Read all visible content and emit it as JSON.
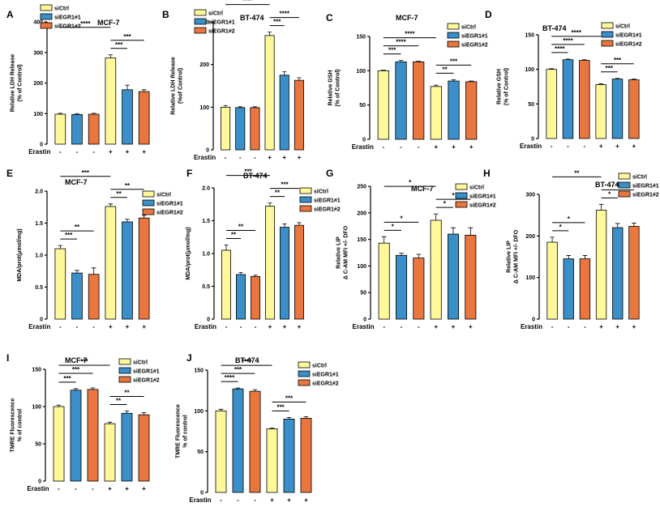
{
  "colors": {
    "siCtrl": "#FFF89B",
    "siEGR1#1": "#3A8FC8",
    "siEGR1#2": "#E8763E"
  },
  "condition_label": "Erastin",
  "chart_data": [
    {
      "type": "bar",
      "panel": "A",
      "title": "MCF-7",
      "ylabel": [
        "Relative LDH Release",
        "(% of Control)"
      ],
      "ylim": [
        0,
        400
      ],
      "yticks": [
        "0",
        "100",
        "200",
        "300",
        "400"
      ],
      "legend": [
        "siCtrl",
        "siEGR1#1",
        "siEGR1#2"
      ],
      "categories": [
        "-",
        "-",
        "-",
        "+",
        "+",
        "+"
      ],
      "values": [
        98,
        97,
        98,
        282,
        178,
        172
      ],
      "errors": [
        3,
        3,
        3,
        10,
        15,
        6
      ],
      "groups": [
        "siCtrl",
        "siEGR1#1",
        "siEGR1#2",
        "siCtrl",
        "siEGR1#1",
        "siEGR1#2"
      ],
      "significance": [
        {
          "from": 0,
          "to": 3,
          "label": "****"
        },
        {
          "from": 3,
          "to": 4,
          "label": "***"
        },
        {
          "from": 3,
          "to": 5,
          "label": "***"
        }
      ]
    },
    {
      "type": "bar",
      "panel": "B",
      "title": "BT-474",
      "ylabel": [
        "Relative LDH Release",
        "(%of Control)"
      ],
      "ylim": [
        0,
        300
      ],
      "yticks": [
        "0",
        "100",
        "200",
        "300"
      ],
      "legend": [
        "siCtrl",
        "siEGR1#1",
        "siEGR1#2"
      ],
      "categories": [
        "-",
        "-",
        "-",
        "+",
        "+",
        "+"
      ],
      "values": [
        100,
        99,
        99,
        268,
        175,
        163
      ],
      "errors": [
        4,
        2,
        2,
        8,
        8,
        6
      ],
      "groups": [
        "siCtrl",
        "siEGR1#1",
        "siEGR1#2",
        "siCtrl",
        "siEGR1#1",
        "siEGR1#2"
      ],
      "significance": [
        {
          "from": 0,
          "to": 3,
          "label": "****"
        },
        {
          "from": 3,
          "to": 4,
          "label": "***"
        },
        {
          "from": 3,
          "to": 5,
          "label": "****"
        }
      ]
    },
    {
      "type": "bar",
      "panel": "C",
      "title": "MCF-7",
      "ylabel": [
        "Relative GSH",
        "(% of Control)"
      ],
      "ylim": [
        0,
        150
      ],
      "yticks": [
        "0",
        "50",
        "100",
        "150"
      ],
      "legend": [
        "siCtrl",
        "siEGR1#1",
        "siEGR1#2"
      ],
      "categories": [
        "-",
        "-",
        "-",
        "+",
        "+",
        "+"
      ],
      "values": [
        100,
        113,
        113,
        77,
        85,
        84
      ],
      "errors": [
        1,
        2,
        1,
        2,
        2,
        1
      ],
      "groups": [
        "siCtrl",
        "siEGR1#1",
        "siEGR1#2",
        "siCtrl",
        "siEGR1#1",
        "siEGR1#2"
      ],
      "significance": [
        {
          "from": 0,
          "to": 1,
          "label": "***"
        },
        {
          "from": 0,
          "to": 2,
          "label": "****"
        },
        {
          "from": 0,
          "to": 3,
          "label": "****"
        },
        {
          "from": 3,
          "to": 4,
          "label": "**"
        },
        {
          "from": 3,
          "to": 5,
          "label": "***"
        }
      ]
    },
    {
      "type": "bar",
      "panel": "D",
      "title": "BT-474",
      "ylabel": [
        "Relative GSH",
        "(% of Control)"
      ],
      "ylim": [
        0,
        150
      ],
      "yticks": [
        "0",
        "50",
        "100",
        "150"
      ],
      "legend": [
        "siCtrl",
        "siEGR1#1",
        "siEGR1#2"
      ],
      "categories": [
        "-",
        "-",
        "-",
        "+",
        "+",
        "+"
      ],
      "values": [
        100,
        114,
        113,
        78,
        86,
        85
      ],
      "errors": [
        1,
        1,
        1,
        1,
        1,
        1
      ],
      "groups": [
        "siCtrl",
        "siEGR1#1",
        "siEGR1#2",
        "siCtrl",
        "siEGR1#1",
        "siEGR1#2"
      ],
      "significance": [
        {
          "from": 0,
          "to": 1,
          "label": "****"
        },
        {
          "from": 0,
          "to": 2,
          "label": "****"
        },
        {
          "from": 0,
          "to": 3,
          "label": "****"
        },
        {
          "from": 3,
          "to": 4,
          "label": "***"
        },
        {
          "from": 3,
          "to": 5,
          "label": "***"
        }
      ]
    },
    {
      "type": "bar",
      "panel": "E",
      "title": "MCF-7",
      "ylabel": [
        "MDA/prot(μmol/mg)"
      ],
      "ylim": [
        0,
        2.0
      ],
      "yticks": [
        "0",
        "0.5",
        "1.0",
        "1.5",
        "2.0"
      ],
      "legend": [
        "siCtrl",
        "siEGR1#1",
        "siEGR1#2"
      ],
      "categories": [
        "-",
        "-",
        "-",
        "+",
        "+",
        "+"
      ],
      "values": [
        1.1,
        0.72,
        0.7,
        1.76,
        1.52,
        1.58
      ],
      "errors": [
        0.05,
        0.04,
        0.1,
        0.04,
        0.04,
        0.04
      ],
      "groups": [
        "siCtrl",
        "siEGR1#1",
        "siEGR1#2",
        "siCtrl",
        "siEGR1#1",
        "siEGR1#2"
      ],
      "significance": [
        {
          "from": 0,
          "to": 1,
          "label": "***"
        },
        {
          "from": 0,
          "to": 2,
          "label": "**"
        },
        {
          "from": 0,
          "to": 3,
          "label": "***"
        },
        {
          "from": 3,
          "to": 4,
          "label": "**"
        },
        {
          "from": 3,
          "to": 5,
          "label": "**"
        }
      ]
    },
    {
      "type": "bar",
      "panel": "F",
      "title": "BT-474",
      "ylabel": [
        "MDA/prot(μmol/mg)"
      ],
      "ylim": [
        0,
        2.0
      ],
      "yticks": [
        "0",
        "0.5",
        "1.0",
        "1.5",
        "2.0"
      ],
      "legend": [
        "siCtrl",
        "siEGR1#1",
        "siEGR1#2"
      ],
      "categories": [
        "-",
        "-",
        "-",
        "+",
        "+",
        "+"
      ],
      "values": [
        1.05,
        0.68,
        0.65,
        1.72,
        1.4,
        1.43
      ],
      "errors": [
        0.08,
        0.03,
        0.02,
        0.05,
        0.05,
        0.04
      ],
      "groups": [
        "siCtrl",
        "siEGR1#1",
        "siEGR1#2",
        "siCtrl",
        "siEGR1#1",
        "siEGR1#2"
      ],
      "significance": [
        {
          "from": 0,
          "to": 1,
          "label": "**"
        },
        {
          "from": 0,
          "to": 2,
          "label": "**"
        },
        {
          "from": 0,
          "to": 3,
          "label": "***"
        },
        {
          "from": 3,
          "to": 4,
          "label": "**"
        },
        {
          "from": 3,
          "to": 5,
          "label": "***"
        }
      ]
    },
    {
      "type": "bar",
      "panel": "G",
      "title": "MCF-7",
      "ylabel": [
        "Relative LIP",
        "Δ C-AM MFI +/- DFO"
      ],
      "ylim": [
        0,
        250
      ],
      "yticks": [
        "0",
        "50",
        "100",
        "150",
        "200",
        "250"
      ],
      "legend": [
        "siCtrl",
        "siEGR1#1",
        "siEGR1#2"
      ],
      "categories": [
        "-",
        "-",
        "-",
        "+",
        "+",
        "+"
      ],
      "values": [
        143,
        120,
        115,
        186,
        160,
        158
      ],
      "errors": [
        12,
        4,
        7,
        12,
        12,
        14
      ],
      "groups": [
        "siCtrl",
        "siEGR1#1",
        "siEGR1#2",
        "siCtrl",
        "siEGR1#1",
        "siEGR1#2"
      ],
      "significance": [
        {
          "from": 0,
          "to": 1,
          "label": "*"
        },
        {
          "from": 0,
          "to": 2,
          "label": "*"
        },
        {
          "from": 0,
          "to": 3,
          "label": "*"
        },
        {
          "from": 3,
          "to": 4,
          "label": "*"
        },
        {
          "from": 3,
          "to": 5,
          "label": "*"
        }
      ]
    },
    {
      "type": "bar",
      "panel": "H",
      "title": "BT-474",
      "ylabel": [
        "Relative LIP",
        "Δ C-AM MFI +/- DFO"
      ],
      "ylim": [
        0,
        300
      ],
      "yticks": [
        "0",
        "100",
        "200",
        "300"
      ],
      "legend": [
        "siCtrl",
        "siEGR1#1",
        "siEGR1#2"
      ],
      "categories": [
        "-",
        "-",
        "-",
        "+",
        "+",
        "+"
      ],
      "values": [
        185,
        145,
        145,
        262,
        220,
        223
      ],
      "errors": [
        12,
        8,
        8,
        14,
        10,
        8
      ],
      "groups": [
        "siCtrl",
        "siEGR1#1",
        "siEGR1#2",
        "siCtrl",
        "siEGR1#1",
        "siEGR1#2"
      ],
      "significance": [
        {
          "from": 0,
          "to": 1,
          "label": "*"
        },
        {
          "from": 0,
          "to": 2,
          "label": "*"
        },
        {
          "from": 0,
          "to": 3,
          "label": "**"
        },
        {
          "from": 3,
          "to": 4,
          "label": "*"
        },
        {
          "from": 3,
          "to": 5,
          "label": "*"
        }
      ]
    },
    {
      "type": "bar",
      "panel": "I",
      "title": "MCF-7",
      "ylabel": [
        "TMRE Fluorescence",
        "% of control"
      ],
      "ylim": [
        0,
        150
      ],
      "yticks": [
        "0",
        "50",
        "100",
        "150"
      ],
      "legend": [
        "siCtrl",
        "siEGR1#1",
        "siEGR1#2"
      ],
      "categories": [
        "-",
        "-",
        "-",
        "+",
        "+",
        "+"
      ],
      "values": [
        100,
        122,
        123,
        77,
        91,
        89
      ],
      "errors": [
        2,
        2,
        2,
        2,
        3,
        3
      ],
      "groups": [
        "siCtrl",
        "siEGR1#1",
        "siEGR1#2",
        "siCtrl",
        "siEGR1#1",
        "siEGR1#2"
      ],
      "significance": [
        {
          "from": 0,
          "to": 1,
          "label": "***"
        },
        {
          "from": 0,
          "to": 2,
          "label": "***"
        },
        {
          "from": 0,
          "to": 3,
          "label": "***"
        },
        {
          "from": 3,
          "to": 4,
          "label": "**"
        },
        {
          "from": 3,
          "to": 5,
          "label": "**"
        }
      ]
    },
    {
      "type": "bar",
      "panel": "J",
      "title": "BT-474",
      "ylabel": [
        "TMRE Fluorescence",
        "% of control"
      ],
      "ylim": [
        0,
        150
      ],
      "yticks": [
        "0",
        "50",
        "100",
        "150"
      ],
      "legend": [
        "siCtrl",
        "siEGR1#1",
        "siEGR1#2"
      ],
      "categories": [
        "-",
        "-",
        "-",
        "+",
        "+",
        "+"
      ],
      "values": [
        100,
        127,
        124,
        78,
        90,
        91
      ],
      "errors": [
        2,
        1,
        2,
        1,
        2,
        2
      ],
      "groups": [
        "siCtrl",
        "siEGR1#1",
        "siEGR1#2",
        "siCtrl",
        "siEGR1#1",
        "siEGR1#2"
      ],
      "significance": [
        {
          "from": 0,
          "to": 1,
          "label": "****"
        },
        {
          "from": 0,
          "to": 2,
          "label": "***"
        },
        {
          "from": 0,
          "to": 3,
          "label": "****"
        },
        {
          "from": 3,
          "to": 4,
          "label": "***"
        },
        {
          "from": 3,
          "to": 5,
          "label": "***"
        }
      ]
    }
  ]
}
